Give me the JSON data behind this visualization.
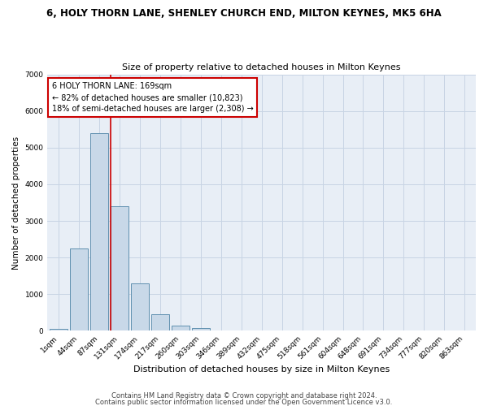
{
  "title_line1": "6, HOLY THORN LANE, SHENLEY CHURCH END, MILTON KEYNES, MK5 6HA",
  "title_line2": "Size of property relative to detached houses in Milton Keynes",
  "xlabel": "Distribution of detached houses by size in Milton Keynes",
  "ylabel": "Number of detached properties",
  "categories": [
    "1sqm",
    "44sqm",
    "87sqm",
    "131sqm",
    "174sqm",
    "217sqm",
    "260sqm",
    "303sqm",
    "346sqm",
    "389sqm",
    "432sqm",
    "475sqm",
    "518sqm",
    "561sqm",
    "604sqm",
    "648sqm",
    "691sqm",
    "734sqm",
    "777sqm",
    "820sqm",
    "863sqm"
  ],
  "values": [
    50,
    2250,
    5400,
    3400,
    1300,
    450,
    150,
    80,
    0,
    0,
    0,
    0,
    0,
    0,
    0,
    0,
    0,
    0,
    0,
    0,
    0
  ],
  "bar_color": "#c8d8e8",
  "bar_edge_color": "#6090b0",
  "grid_color": "#c8d4e4",
  "background_color": "#e8eef6",
  "vline_color": "#cc0000",
  "vline_pos": 2.575,
  "annotation_text": "6 HOLY THORN LANE: 169sqm\n← 82% of detached houses are smaller (10,823)\n18% of semi-detached houses are larger (2,308) →",
  "annotation_box_color": "#cc0000",
  "ylim": [
    0,
    7000
  ],
  "yticks": [
    0,
    1000,
    2000,
    3000,
    4000,
    5000,
    6000,
    7000
  ],
  "footer_line1": "Contains HM Land Registry data © Crown copyright and database right 2024.",
  "footer_line2": "Contains public sector information licensed under the Open Government Licence v3.0.",
  "fig_bg": "#ffffff",
  "title1_fontsize": 8.5,
  "title2_fontsize": 8.0,
  "ylabel_fontsize": 7.5,
  "xlabel_fontsize": 8.0,
  "tick_fontsize": 6.5,
  "ann_fontsize": 7.0,
  "footer_fontsize": 6.0
}
